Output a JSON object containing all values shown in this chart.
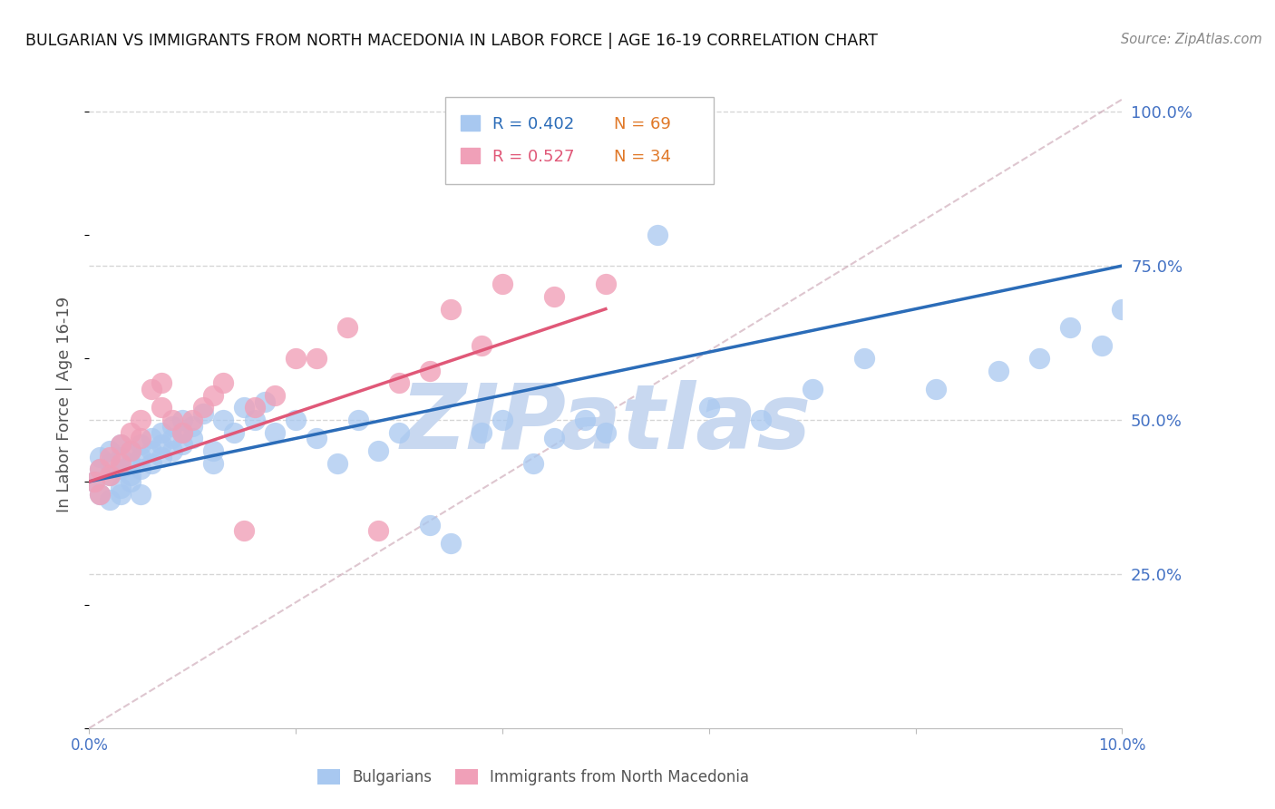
{
  "title": "BULGARIAN VS IMMIGRANTS FROM NORTH MACEDONIA IN LABOR FORCE | AGE 16-19 CORRELATION CHART",
  "source": "Source: ZipAtlas.com",
  "ylabel": "In Labor Force | Age 16-19",
  "xlim": [
    0.0,
    0.1
  ],
  "ylim": [
    0.0,
    1.05
  ],
  "blue_color": "#A8C8F0",
  "pink_color": "#F0A0B8",
  "blue_line_color": "#2B6CB8",
  "pink_line_color": "#E05878",
  "ref_line_color": "#C8A0B0",
  "grid_color": "#CCCCCC",
  "background_color": "#FFFFFF",
  "axis_label_color": "#555555",
  "tick_label_color": "#4472C4",
  "watermark": "ZIPatlas",
  "watermark_color": "#C8D8F0",
  "blue_line_x0": 0.0,
  "blue_line_y0": 0.4,
  "blue_line_x1": 0.1,
  "blue_line_y1": 0.75,
  "pink_line_x0": 0.0,
  "pink_line_y0": 0.4,
  "pink_line_x1": 0.05,
  "pink_line_y1": 0.68,
  "ref_line_x0": 0.0,
  "ref_line_y0": 0.0,
  "ref_line_x1": 0.1,
  "ref_line_y1": 1.02,
  "blue_x": [
    0.0005,
    0.001,
    0.001,
    0.001,
    0.002,
    0.002,
    0.002,
    0.002,
    0.003,
    0.003,
    0.003,
    0.003,
    0.003,
    0.004,
    0.004,
    0.004,
    0.004,
    0.005,
    0.005,
    0.005,
    0.005,
    0.006,
    0.006,
    0.006,
    0.007,
    0.007,
    0.007,
    0.008,
    0.008,
    0.008,
    0.009,
    0.009,
    0.009,
    0.01,
    0.01,
    0.011,
    0.012,
    0.012,
    0.013,
    0.014,
    0.015,
    0.016,
    0.017,
    0.018,
    0.02,
    0.022,
    0.024,
    0.026,
    0.028,
    0.03,
    0.033,
    0.035,
    0.038,
    0.04,
    0.043,
    0.045,
    0.048,
    0.05,
    0.055,
    0.06,
    0.065,
    0.07,
    0.075,
    0.082,
    0.088,
    0.092,
    0.095,
    0.098,
    0.1
  ],
  "blue_y": [
    0.4,
    0.42,
    0.44,
    0.38,
    0.41,
    0.43,
    0.45,
    0.37,
    0.44,
    0.42,
    0.46,
    0.39,
    0.38,
    0.43,
    0.41,
    0.45,
    0.4,
    0.44,
    0.42,
    0.46,
    0.38,
    0.45,
    0.47,
    0.43,
    0.46,
    0.48,
    0.44,
    0.47,
    0.45,
    0.49,
    0.48,
    0.5,
    0.46,
    0.49,
    0.47,
    0.51,
    0.45,
    0.43,
    0.5,
    0.48,
    0.52,
    0.5,
    0.53,
    0.48,
    0.5,
    0.47,
    0.43,
    0.5,
    0.45,
    0.48,
    0.33,
    0.3,
    0.48,
    0.5,
    0.43,
    0.47,
    0.5,
    0.48,
    0.8,
    0.52,
    0.5,
    0.55,
    0.6,
    0.55,
    0.58,
    0.6,
    0.65,
    0.62,
    0.68
  ],
  "pink_x": [
    0.0005,
    0.001,
    0.001,
    0.002,
    0.002,
    0.003,
    0.003,
    0.004,
    0.004,
    0.005,
    0.005,
    0.006,
    0.007,
    0.007,
    0.008,
    0.009,
    0.01,
    0.011,
    0.012,
    0.013,
    0.015,
    0.016,
    0.018,
    0.02,
    0.022,
    0.025,
    0.028,
    0.03,
    0.033,
    0.035,
    0.038,
    0.04,
    0.045,
    0.05
  ],
  "pink_y": [
    0.4,
    0.42,
    0.38,
    0.44,
    0.41,
    0.46,
    0.43,
    0.45,
    0.48,
    0.47,
    0.5,
    0.55,
    0.56,
    0.52,
    0.5,
    0.48,
    0.5,
    0.52,
    0.54,
    0.56,
    0.32,
    0.52,
    0.54,
    0.6,
    0.6,
    0.65,
    0.32,
    0.56,
    0.58,
    0.68,
    0.62,
    0.72,
    0.7,
    0.72
  ]
}
